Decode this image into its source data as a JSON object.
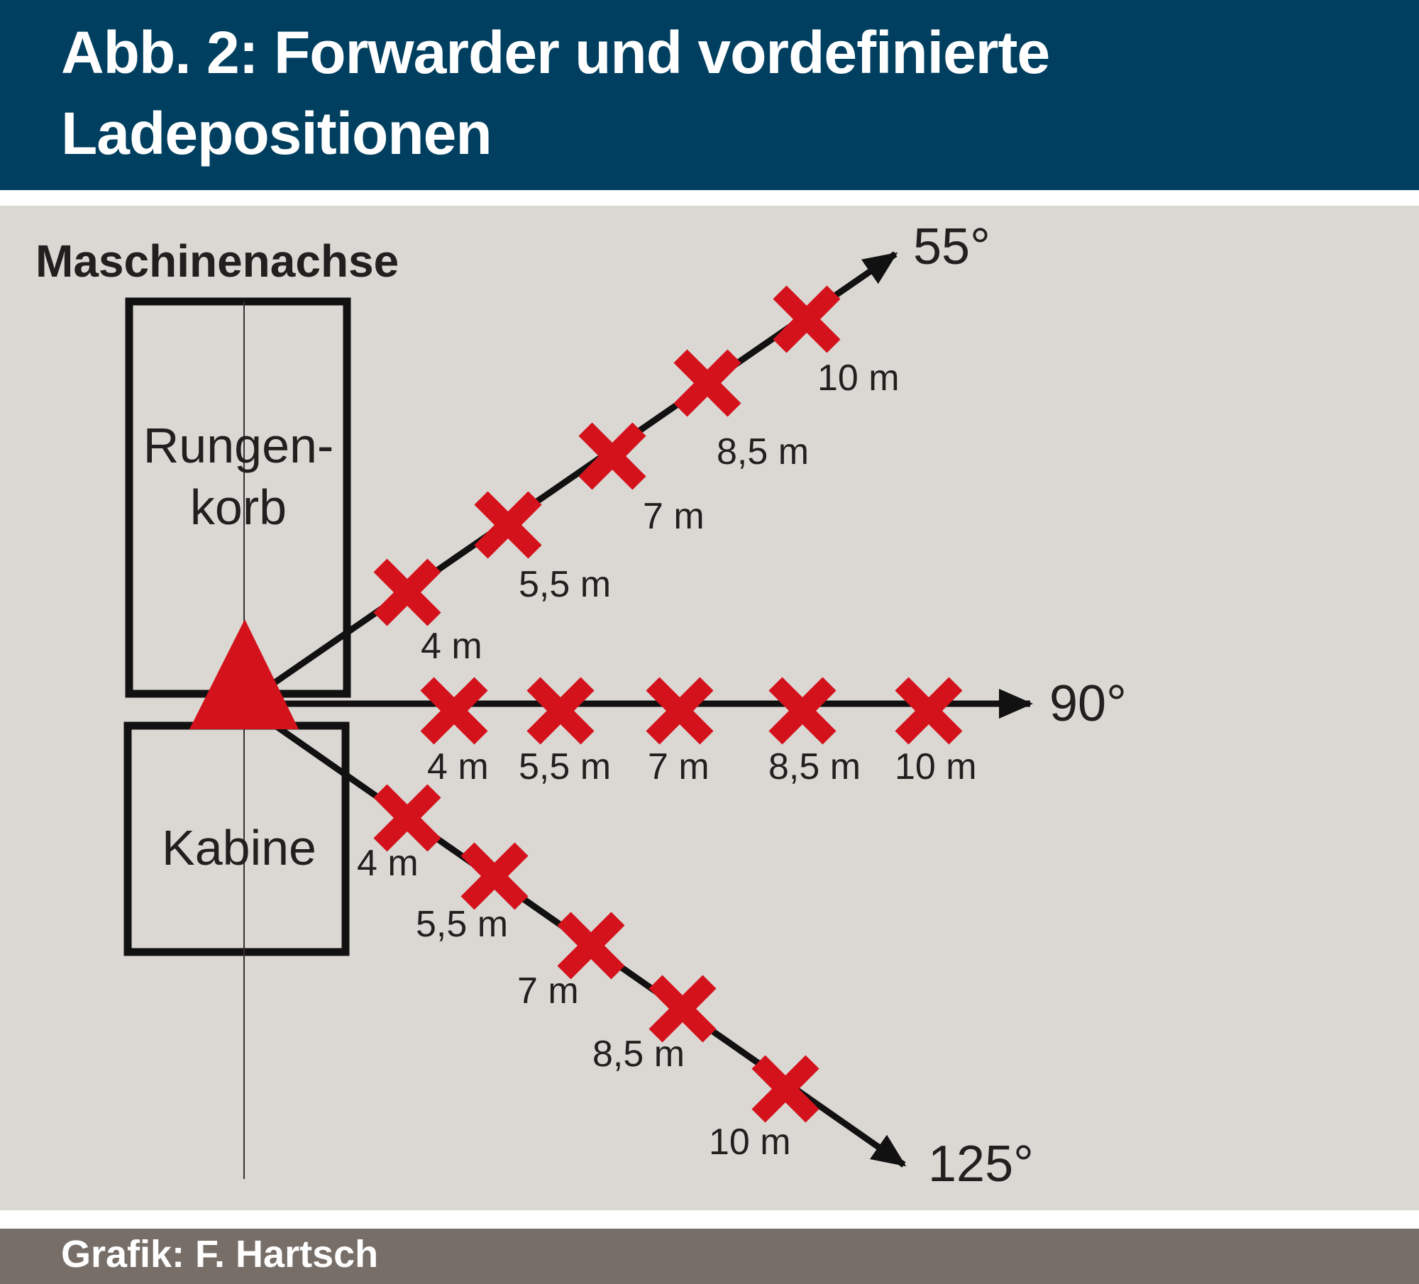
{
  "header": {
    "title_line_1": "Abb. 2: Forwarder und vordefinierte",
    "title_line_2": "Ladepositionen"
  },
  "diagram": {
    "axis_label": "Maschinenachse",
    "boxes": {
      "rungenkorb_line_1": "Rungen-",
      "rungenkorb_line_2": "korb",
      "kabine": "Kabine"
    },
    "rays": [
      {
        "id": "55",
        "angle_label": "55°",
        "distance_labels": [
          "4 m",
          "5,5 m",
          "7 m",
          "8,5 m",
          "10 m"
        ]
      },
      {
        "id": "90",
        "angle_label": "90°",
        "distance_labels": [
          "4 m",
          "5,5 m",
          "7 m",
          "8,5 m",
          "10 m"
        ]
      },
      {
        "id": "125",
        "angle_label": "125°",
        "distance_labels": [
          "4 m",
          "5,5 m",
          "7 m",
          "8,5 m",
          "10 m"
        ]
      }
    ]
  },
  "footer": {
    "credit": "Grafik: F. Hartsch"
  },
  "colors": {
    "header_bg": "#003f5f",
    "canvas_bg": "#dbd8d4",
    "footer_bg": "#776e68",
    "marker_red": "#d4121c",
    "line_black": "#111111"
  }
}
